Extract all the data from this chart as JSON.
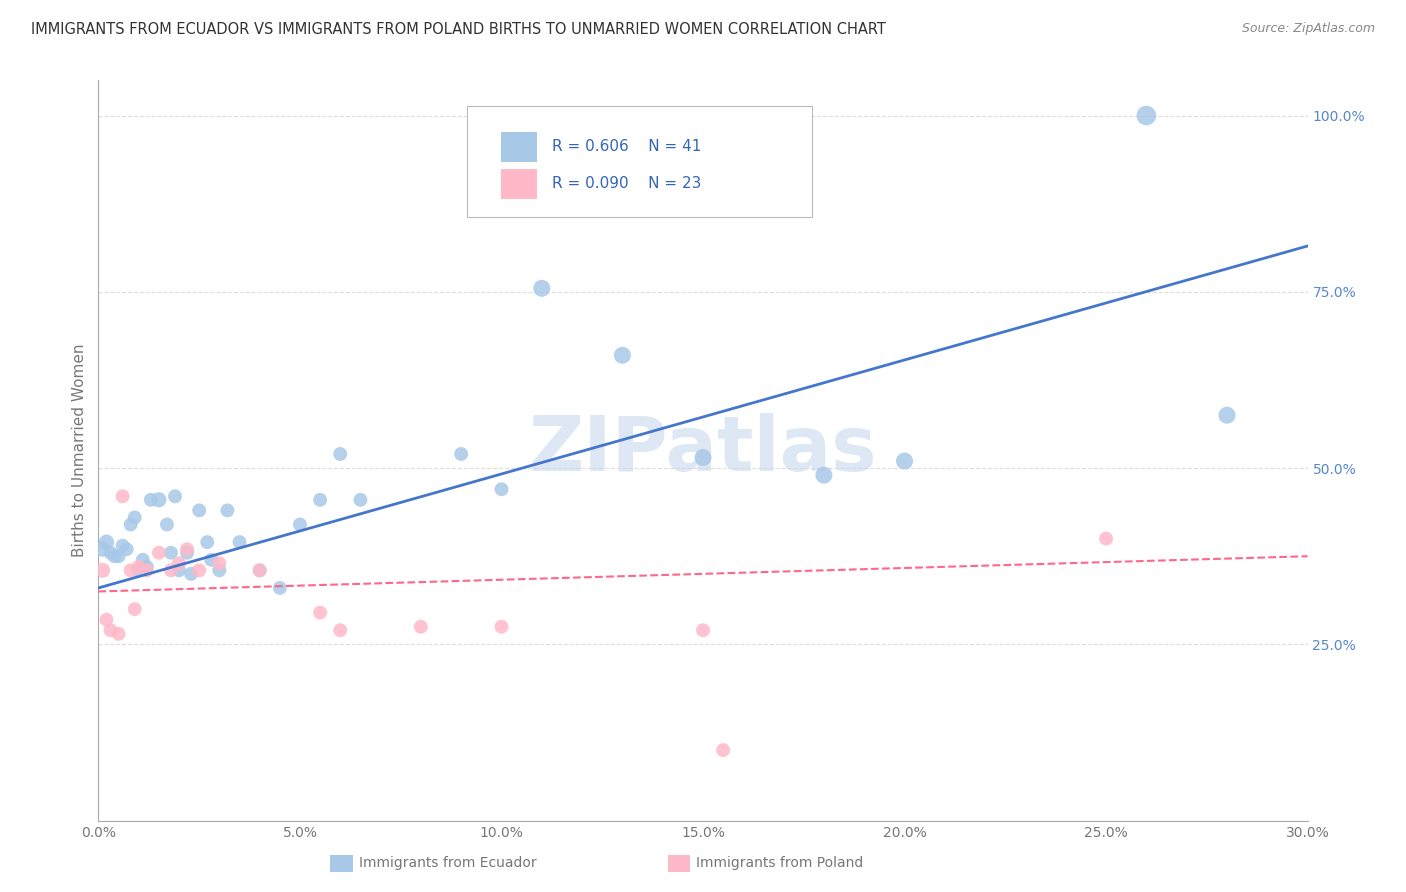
{
  "title": "IMMIGRANTS FROM ECUADOR VS IMMIGRANTS FROM POLAND BIRTHS TO UNMARRIED WOMEN CORRELATION CHART",
  "source": "Source: ZipAtlas.com",
  "ylabel_left": "Births to Unmarried Women",
  "legend_ecuador": "Immigrants from Ecuador",
  "legend_poland": "Immigrants from Poland",
  "r_ecuador": "0.606",
  "n_ecuador": "41",
  "r_poland": "0.090",
  "n_poland": "23",
  "xlim": [
    0.0,
    0.3
  ],
  "ylim": [
    0.0,
    1.05
  ],
  "right_yticks": [
    0.25,
    0.5,
    0.75,
    1.0
  ],
  "right_yticklabels": [
    "25.0%",
    "50.0%",
    "75.0%",
    "100.0%"
  ],
  "xtick_vals": [
    0.0,
    0.05,
    0.1,
    0.15,
    0.2,
    0.25,
    0.3
  ],
  "xtick_labels": [
    "0.0%",
    "5.0%",
    "10.0%",
    "15.0%",
    "20.0%",
    "25.0%",
    "30.0%"
  ],
  "ecuador_color": "#A8C8E8",
  "ecuador_line_color": "#4477CC",
  "poland_color": "#FFB8C8",
  "poland_line_color": "#FF6688",
  "ecuador_x": [
    0.001,
    0.002,
    0.003,
    0.004,
    0.005,
    0.006,
    0.007,
    0.008,
    0.009,
    0.01,
    0.011,
    0.012,
    0.013,
    0.015,
    0.017,
    0.018,
    0.019,
    0.02,
    0.022,
    0.023,
    0.025,
    0.027,
    0.028,
    0.03,
    0.032,
    0.035,
    0.04,
    0.045,
    0.05,
    0.055,
    0.06,
    0.065,
    0.09,
    0.1,
    0.11,
    0.13,
    0.15,
    0.18,
    0.2,
    0.26,
    0.28
  ],
  "ecuador_y": [
    0.385,
    0.395,
    0.38,
    0.375,
    0.375,
    0.39,
    0.385,
    0.42,
    0.43,
    0.355,
    0.37,
    0.36,
    0.455,
    0.455,
    0.42,
    0.38,
    0.46,
    0.355,
    0.38,
    0.35,
    0.44,
    0.395,
    0.37,
    0.355,
    0.44,
    0.395,
    0.355,
    0.33,
    0.42,
    0.455,
    0.52,
    0.455,
    0.52,
    0.47,
    0.755,
    0.66,
    0.515,
    0.49,
    0.51,
    1.0,
    0.575
  ],
  "ecuador_sizes": [
    120,
    120,
    100,
    100,
    100,
    100,
    100,
    100,
    100,
    100,
    100,
    100,
    100,
    120,
    100,
    100,
    100,
    100,
    100,
    100,
    100,
    100,
    100,
    100,
    100,
    100,
    100,
    100,
    100,
    100,
    100,
    100,
    100,
    100,
    150,
    150,
    150,
    150,
    150,
    200,
    150
  ],
  "poland_x": [
    0.001,
    0.002,
    0.003,
    0.005,
    0.006,
    0.008,
    0.009,
    0.01,
    0.012,
    0.015,
    0.018,
    0.02,
    0.022,
    0.025,
    0.03,
    0.04,
    0.055,
    0.06,
    0.08,
    0.1,
    0.15,
    0.155,
    0.25
  ],
  "poland_y": [
    0.355,
    0.285,
    0.27,
    0.265,
    0.46,
    0.355,
    0.3,
    0.36,
    0.355,
    0.38,
    0.355,
    0.365,
    0.385,
    0.355,
    0.365,
    0.355,
    0.295,
    0.27,
    0.275,
    0.275,
    0.27,
    0.1,
    0.4
  ],
  "poland_sizes": [
    120,
    100,
    100,
    100,
    100,
    100,
    100,
    100,
    100,
    100,
    100,
    100,
    100,
    100,
    100,
    100,
    100,
    100,
    100,
    100,
    100,
    100,
    100
  ],
  "ecuador_line_x": [
    0.0,
    0.3
  ],
  "ecuador_line_y": [
    0.33,
    0.815
  ],
  "poland_line_x": [
    0.0,
    0.3
  ],
  "poland_line_y": [
    0.325,
    0.375
  ],
  "grid_color": "#DDDDDD",
  "background_color": "#FFFFFF",
  "title_color": "#333333",
  "watermark_text": "ZIPatlas",
  "watermark_color": "#C8D8EE",
  "source_color": "#888888",
  "axis_color": "#AAAAAA",
  "tick_color": "#777777",
  "right_tick_color": "#5588CC"
}
